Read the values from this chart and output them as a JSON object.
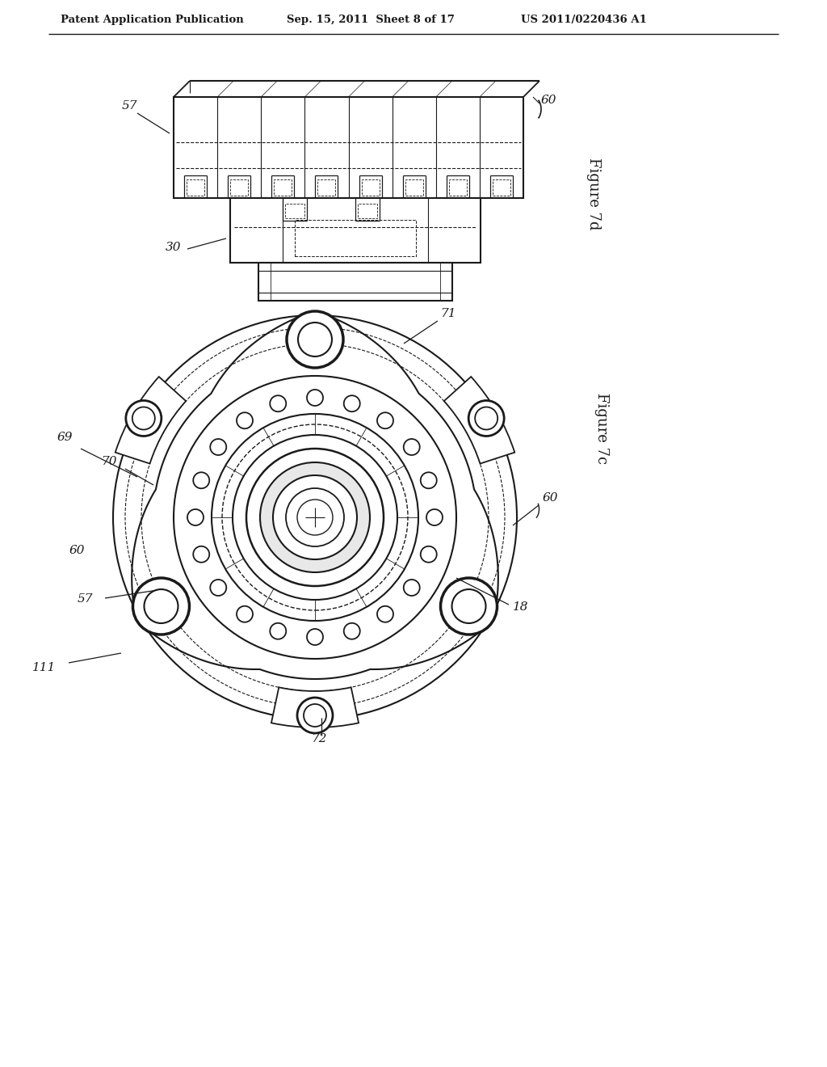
{
  "bg_color": "#ffffff",
  "header_left": "Patent Application Publication",
  "header_mid": "Sep. 15, 2011  Sheet 8 of 17",
  "header_right": "US 2011/0220436 A1",
  "fig7d_label": "Figure 7d",
  "fig7c_label": "Figure 7c",
  "line_color": "#1a1a1a",
  "text_color": "#1a1a1a"
}
